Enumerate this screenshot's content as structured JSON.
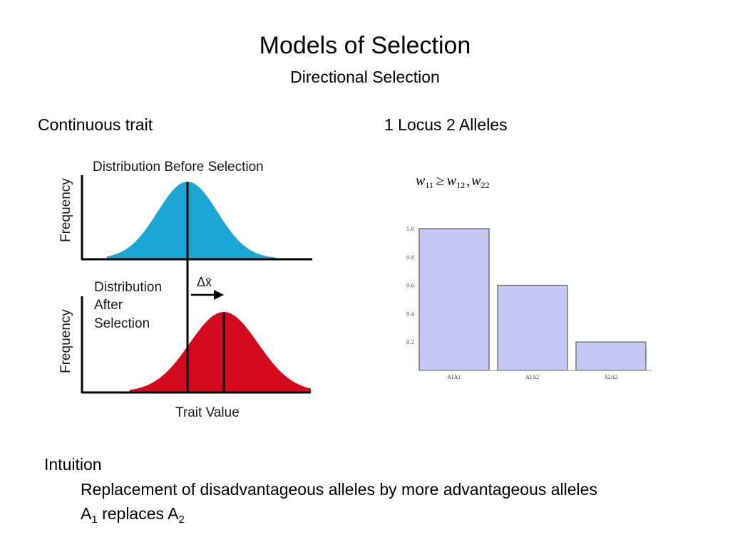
{
  "slide": {
    "title": "Models of Selection",
    "subtitle": "Directional Selection"
  },
  "left_panel": {
    "heading": "Continuous trait",
    "figure": {
      "top_label": "Distribution Before Selection",
      "bottom_label_lines": [
        "Distribution",
        "After",
        "Selection"
      ],
      "y_axis_label": "Frequency",
      "x_axis_label": "Trait Value",
      "shift_label": "Δx̄",
      "colors": {
        "before": "#1aa7d6",
        "after": "#d4091e"
      }
    }
  },
  "right_panel": {
    "heading": "1 Locus 2 Alleles",
    "formula": {
      "w": "w",
      "sub_11": "11",
      "op": "≥",
      "sub_12": "12",
      "sep": ",",
      "sub_22": "22"
    },
    "chart_data": {
      "type": "bar",
      "categories": [
        "A1A1",
        "A1A2",
        "A2A2"
      ],
      "values": [
        1.0,
        0.6,
        0.2
      ],
      "yticks": [
        "1.0",
        "0.8",
        "0.6",
        "0.4",
        "0.2"
      ],
      "ylim": [
        0,
        1.0
      ],
      "bar_color": "#c4c8f4",
      "bar_edge_color": "#777777"
    }
  },
  "intuition": {
    "heading": "Intuition",
    "line1": "Replacement of disadvantageous alleles by more advantageous alleles",
    "line2_a": "A",
    "line2_sub1": "1",
    "line2_mid": " replaces A",
    "line2_sub2": "2"
  }
}
